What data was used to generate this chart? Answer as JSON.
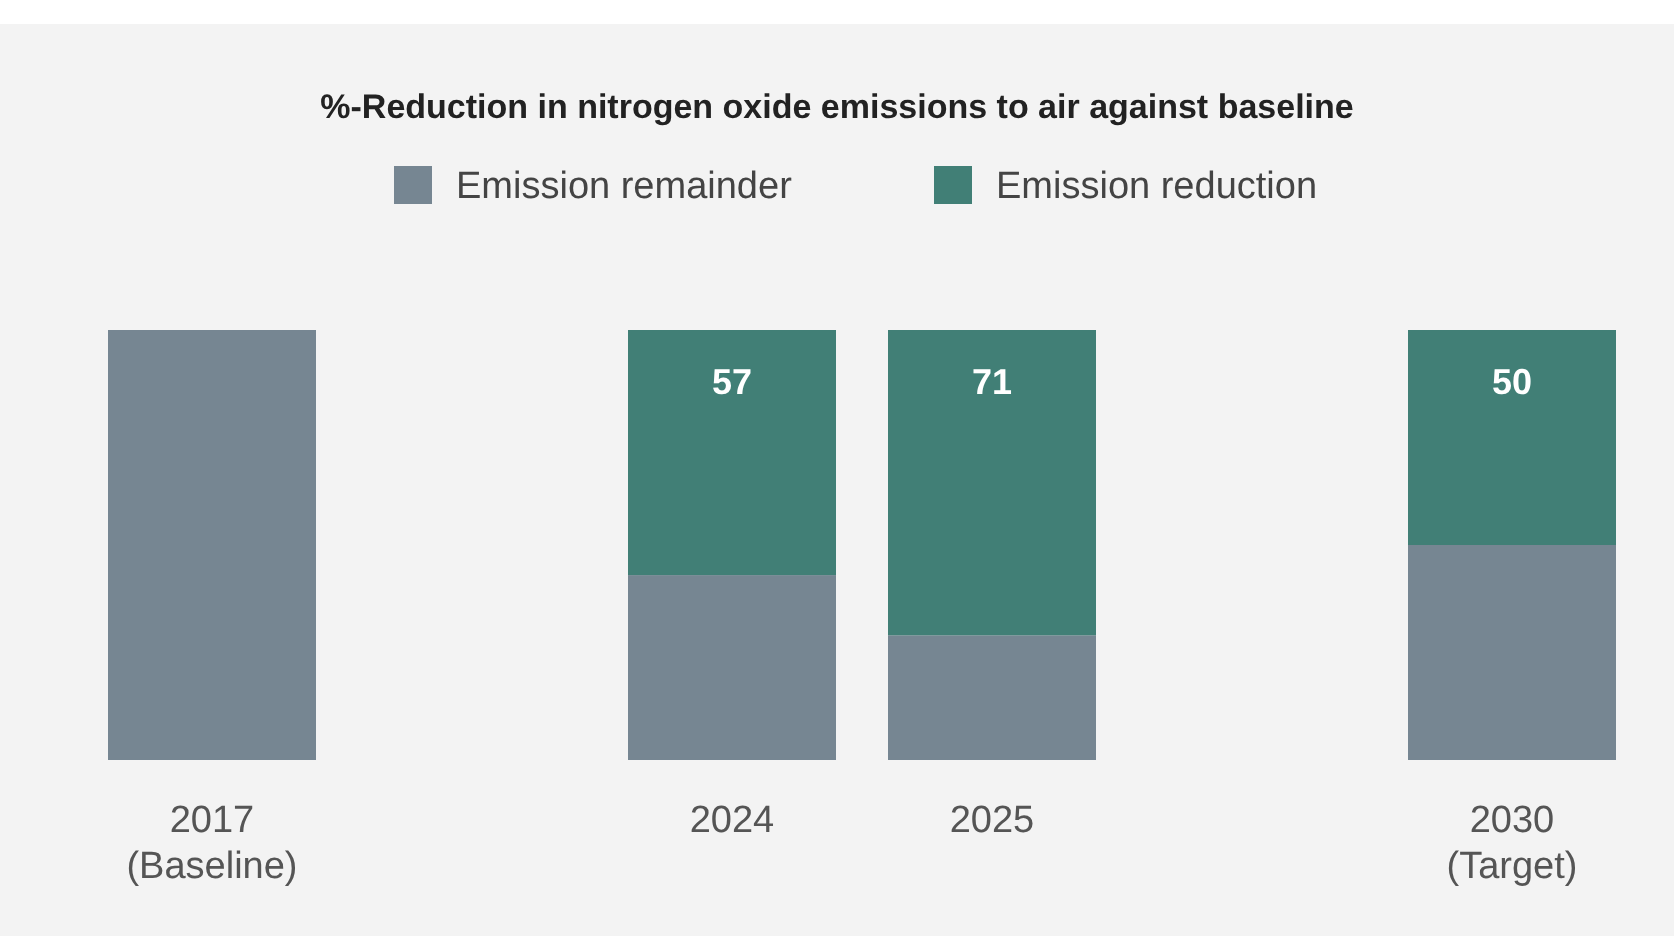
{
  "chart_data": {
    "type": "bar",
    "title": "%-Reduction in nitrogen oxide emissions to air against baseline",
    "categories": [
      "2017\n(Baseline)",
      null,
      "2024",
      "2025",
      null,
      "2030\n(Target)"
    ],
    "stacked": true,
    "legend": "top",
    "ylim": [
      0,
      100
    ],
    "tick_labels": "x",
    "series": [
      {
        "name": "Emission remainder",
        "color": "#768692",
        "values": [
          100,
          null,
          43,
          29,
          null,
          50
        ]
      },
      {
        "name": "Emission reduction",
        "color": "#417f76",
        "values": [
          null,
          null,
          57,
          71,
          null,
          50
        ],
        "value_labels": [
          null,
          null,
          "57",
          "71",
          null,
          "50"
        ]
      }
    ]
  }
}
